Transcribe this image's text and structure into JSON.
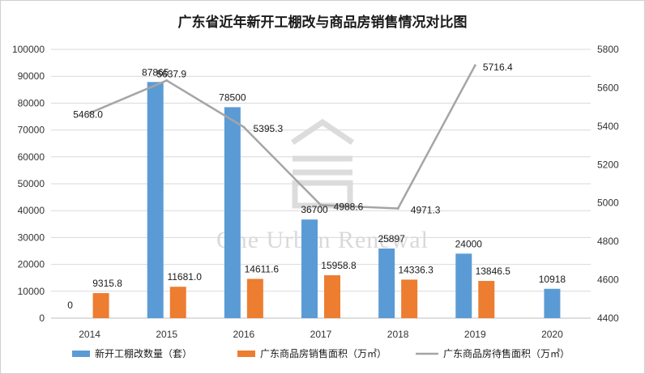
{
  "chart_data": {
    "type": "bar+line",
    "title": "广东省近年新开工棚改与商品房销售情况对比图",
    "categories": [
      "2014",
      "2015",
      "2016",
      "2017",
      "2018",
      "2019",
      "2020"
    ],
    "y_left": {
      "min": 0,
      "max": 100000,
      "step": 10000,
      "ticks": [
        "0",
        "10000",
        "20000",
        "30000",
        "40000",
        "50000",
        "60000",
        "70000",
        "80000",
        "90000",
        "100000"
      ]
    },
    "y_right": {
      "min": 4400,
      "max": 5800,
      "step": 200,
      "ticks": [
        "4400",
        "4600",
        "4800",
        "5000",
        "5200",
        "5400",
        "5600",
        "5800"
      ]
    },
    "grid": true,
    "legend_position": "bottom",
    "series": [
      {
        "name": "新开工棚改数量（套）",
        "type": "bar",
        "axis": "left",
        "color": "#5b9bd5",
        "values": [
          0,
          87865,
          78500,
          36700,
          25897,
          24000,
          10918
        ],
        "labels": [
          "0",
          "87865",
          "78500",
          "36700",
          "25897",
          "24000",
          "10918"
        ]
      },
      {
        "name": "广东商品房销售面积（万㎡）",
        "type": "bar",
        "axis": "left",
        "color": "#ed7d31",
        "values": [
          9315.8,
          11681.0,
          14611.6,
          15958.8,
          14336.3,
          13846.5,
          null
        ],
        "labels": [
          "9315.8",
          "11681.0",
          "14611.6",
          "15958.8",
          "14336.3",
          "13846.5",
          ""
        ]
      },
      {
        "name": "广东商品房待售面积（万㎡）",
        "type": "line",
        "axis": "right",
        "color": "#a5a5a5",
        "values": [
          5468.0,
          5637.9,
          5395.3,
          4988.6,
          4971.3,
          5716.4,
          null
        ],
        "labels": [
          "5468.0",
          "5637.9",
          "5395.3",
          "4988.6",
          "4971.3",
          "5716.4",
          ""
        ]
      }
    ]
  },
  "watermark": {
    "text": "One Urban Renewal",
    "logo_icon": "house-logo-icon"
  }
}
